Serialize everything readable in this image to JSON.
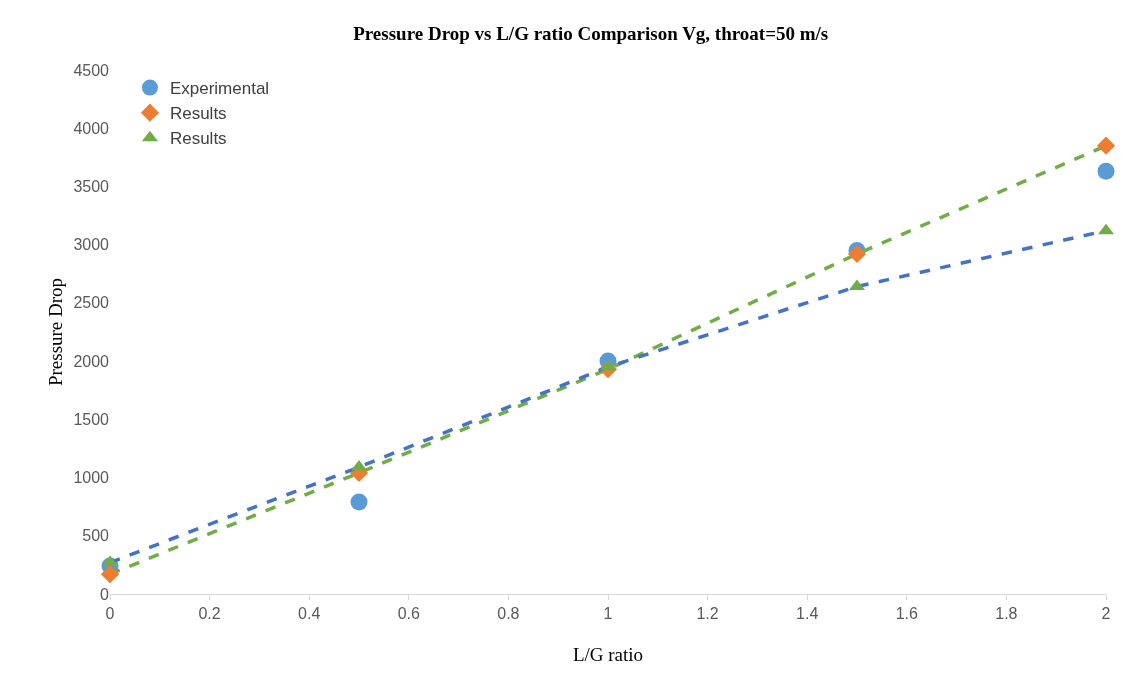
{
  "chart_data": {
    "type": "scatter",
    "title": "Pressure Drop vs L/G ratio Comparison Vg, throat=50 m/s",
    "xlabel": "L/G ratio",
    "ylabel": "Pressure Drop",
    "x": [
      0,
      0.5,
      1,
      1.5,
      2
    ],
    "series": [
      {
        "name": "Experimental",
        "marker": "circle",
        "color": "#5b9bd5",
        "values": [
          240,
          790,
          2000,
          2950,
          3630
        ]
      },
      {
        "type": "line",
        "marker": "none",
        "line_style": "dashed",
        "color": "#70ad47",
        "values": [
          170,
          1040,
          1930,
          2920,
          3850
        ]
      },
      {
        "name": "Results",
        "marker": "diamond",
        "color": "#ed7d31",
        "values": [
          170,
          1040,
          1930,
          2920,
          3850
        ]
      },
      {
        "type": "line",
        "marker": "none",
        "line_style": "dashed",
        "color": "#4472c4",
        "values": [
          270,
          1090,
          1950,
          2640,
          3120
        ]
      },
      {
        "name": "Results",
        "marker": "triangle",
        "color": "#70ad47",
        "values": [
          270,
          1090,
          1950,
          2640,
          3120
        ]
      }
    ],
    "xlim": [
      0,
      2
    ],
    "xticks": [
      0,
      0.2,
      0.4,
      0.6,
      0.8,
      1,
      1.2,
      1.4,
      1.6,
      1.8,
      2
    ],
    "ylim": [
      0,
      4500
    ],
    "yticks": [
      0,
      500,
      1000,
      1500,
      2000,
      2500,
      3000,
      3500,
      4000,
      4500
    ],
    "grid": false,
    "legend": "top left"
  }
}
